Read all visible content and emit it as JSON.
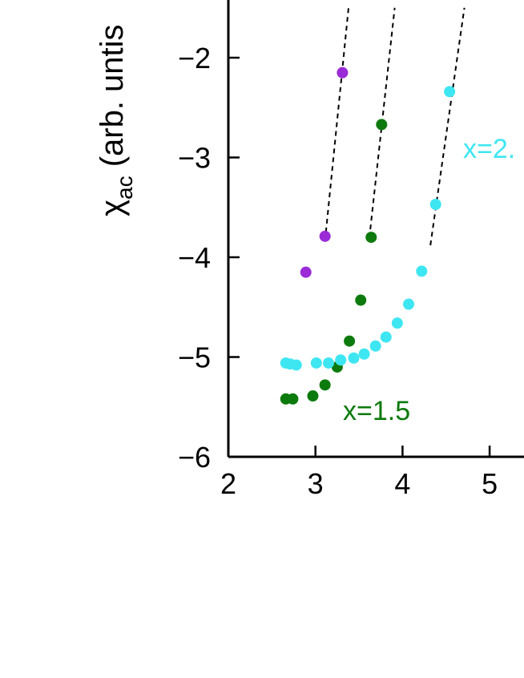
{
  "chart_data": {
    "type": "scatter",
    "title": "",
    "xlabel": "",
    "ylabel_main": "χ",
    "ylabel_sub": "ac",
    "ylabel_rest": " (arb. untis",
    "xlim": [
      2,
      5.4
    ],
    "ylim": [
      -6,
      -1.5
    ],
    "x_ticks": [
      2,
      3,
      4,
      5
    ],
    "x_tick_labels": [
      "2",
      "3",
      "4",
      "5"
    ],
    "y_ticks": [
      -2,
      -3,
      -4,
      -5,
      -6
    ],
    "y_tick_labels": [
      "−2",
      "−3",
      "−4",
      "−5",
      "−6"
    ],
    "grid": false,
    "legend": "none",
    "series": [
      {
        "color": "#9a2bd6",
        "points": [
          [
            2.89,
            -4.15
          ],
          [
            3.11,
            -3.79
          ],
          [
            3.31,
            -2.15
          ]
        ],
        "fit_line": [
          [
            3.12,
            -3.75
          ],
          [
            3.38,
            -1.5
          ]
        ]
      },
      {
        "name": "x=1.5",
        "label_text": "x=1.5",
        "color": "#0d7a0d",
        "points": [
          [
            2.66,
            -5.42
          ],
          [
            2.74,
            -5.42
          ],
          [
            2.97,
            -5.39
          ],
          [
            3.11,
            -5.28
          ],
          [
            3.25,
            -5.1
          ],
          [
            3.39,
            -4.84
          ],
          [
            3.52,
            -4.43
          ],
          [
            3.64,
            -3.8
          ],
          [
            3.76,
            -2.67
          ]
        ],
        "fit_line": [
          [
            3.63,
            -3.72
          ],
          [
            3.91,
            -1.5
          ]
        ]
      },
      {
        "name": "x=2.",
        "label_text": "x=2.",
        "color": "#3ee6f2",
        "points": [
          [
            2.66,
            -5.06
          ],
          [
            2.71,
            -5.07
          ],
          [
            2.78,
            -5.08
          ],
          [
            3.01,
            -5.06
          ],
          [
            3.15,
            -5.06
          ],
          [
            3.29,
            -5.03
          ],
          [
            3.44,
            -5.01
          ],
          [
            3.56,
            -4.97
          ],
          [
            3.69,
            -4.89
          ],
          [
            3.81,
            -4.8
          ],
          [
            3.94,
            -4.66
          ],
          [
            4.07,
            -4.47
          ],
          [
            4.22,
            -4.14
          ],
          [
            4.38,
            -3.47
          ],
          [
            4.54,
            -2.34
          ]
        ],
        "fit_line": [
          [
            4.32,
            -3.88
          ],
          [
            4.71,
            -1.5
          ]
        ]
      }
    ]
  }
}
